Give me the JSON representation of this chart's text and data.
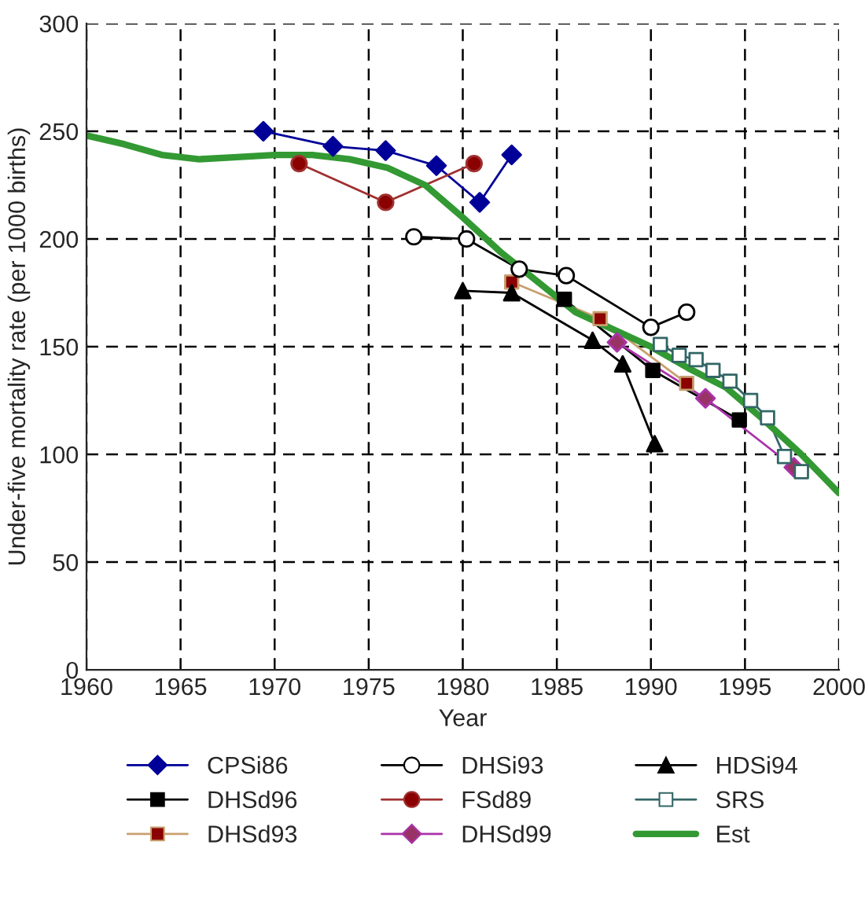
{
  "chart_data": {
    "type": "line",
    "xlabel": "Year",
    "ylabel": "Under-five mortality rate (per 1000 births)",
    "xlim": [
      1960,
      2000
    ],
    "xticks": [
      1960,
      1965,
      1970,
      1975,
      1980,
      1985,
      1990,
      1995,
      2000
    ],
    "ylim": [
      0,
      300
    ],
    "yticks": [
      0,
      50,
      100,
      150,
      200,
      250,
      300
    ],
    "grid": true,
    "legend": "bottom",
    "series": [
      {
        "name": "CPSi86",
        "color": "#000099",
        "marker": "diamond",
        "x": [
          1969.4,
          1973.1,
          1975.9,
          1978.6,
          1980.9,
          1982.6
        ],
        "values": [
          250,
          243,
          241,
          234,
          217,
          239
        ]
      },
      {
        "name": "DHSi93",
        "color": "#000000",
        "marker": "circle",
        "colors": [
          "#ffffff",
          "#ffffff",
          "#ffffff",
          "#ffffff",
          "#ffffff",
          "#ffffff"
        ],
        "x": [
          1977.4,
          1980.2,
          1983.0,
          1985.5,
          1990.0,
          1991.9
        ],
        "values": [
          201,
          200,
          186,
          183,
          159,
          166
        ]
      },
      {
        "name": "HDSi94",
        "color": "#000000",
        "marker": "triangle",
        "x": [
          1980.0,
          1982.6,
          1986.9,
          1988.5,
          1990.2
        ],
        "values": [
          176,
          175,
          153,
          142,
          105
        ]
      },
      {
        "name": "DHSd96",
        "color": "#000000",
        "marker": "square",
        "x": [
          1985.4,
          1990.1,
          1994.7
        ],
        "values": [
          172,
          139,
          116
        ]
      },
      {
        "name": "FSd89",
        "color": "#a03030",
        "marker": "circle",
        "colors": [
          "#8b0000",
          "#8b0000",
          "#8b0000"
        ],
        "x": [
          1971.3,
          1975.9,
          1980.6
        ],
        "values": [
          235,
          217,
          235
        ]
      },
      {
        "name": "SRS",
        "color": "#336666",
        "marker": "square",
        "colors": [
          "#ffffff",
          "#ffffff",
          "#ffffff",
          "#ffffff",
          "#ffffff",
          "#ffffff",
          "#ffffff",
          "#ffffff",
          "#ffffff"
        ],
        "x": [
          1990.5,
          1991.5,
          1992.4,
          1993.3,
          1994.2,
          1995.3,
          1996.2,
          1997.1,
          1998.0
        ],
        "values": [
          151,
          146,
          144,
          139,
          134,
          125,
          117,
          99,
          92
        ]
      },
      {
        "name": "DHSd93",
        "color": "#c8a070",
        "marker": "square",
        "colors": [
          "#8b0000",
          "#8b0000",
          "#8b0000"
        ],
        "x": [
          1982.6,
          1987.3,
          1991.9
        ],
        "values": [
          180,
          163,
          133
        ]
      },
      {
        "name": "DHSd99",
        "color": "#aa33aa",
        "marker": "diamond",
        "colors": [
          "#993366",
          "#993366",
          "#993366"
        ],
        "x": [
          1988.2,
          1992.9,
          1997.6
        ],
        "values": [
          152,
          126,
          94
        ]
      },
      {
        "name": "Est",
        "color": "#339933",
        "marker": "none",
        "x": [
          1960,
          1962,
          1964,
          1966,
          1968,
          1970,
          1972,
          1974,
          1976,
          1978,
          1980,
          1982,
          1984,
          1986,
          1988,
          1990,
          1992,
          1994,
          1996,
          1998,
          2000
        ],
        "values": [
          248,
          244,
          239,
          237,
          238,
          239,
          239,
          237,
          233,
          225,
          210,
          194,
          180,
          166,
          158,
          150,
          140,
          131,
          116,
          100,
          82
        ]
      }
    ]
  }
}
